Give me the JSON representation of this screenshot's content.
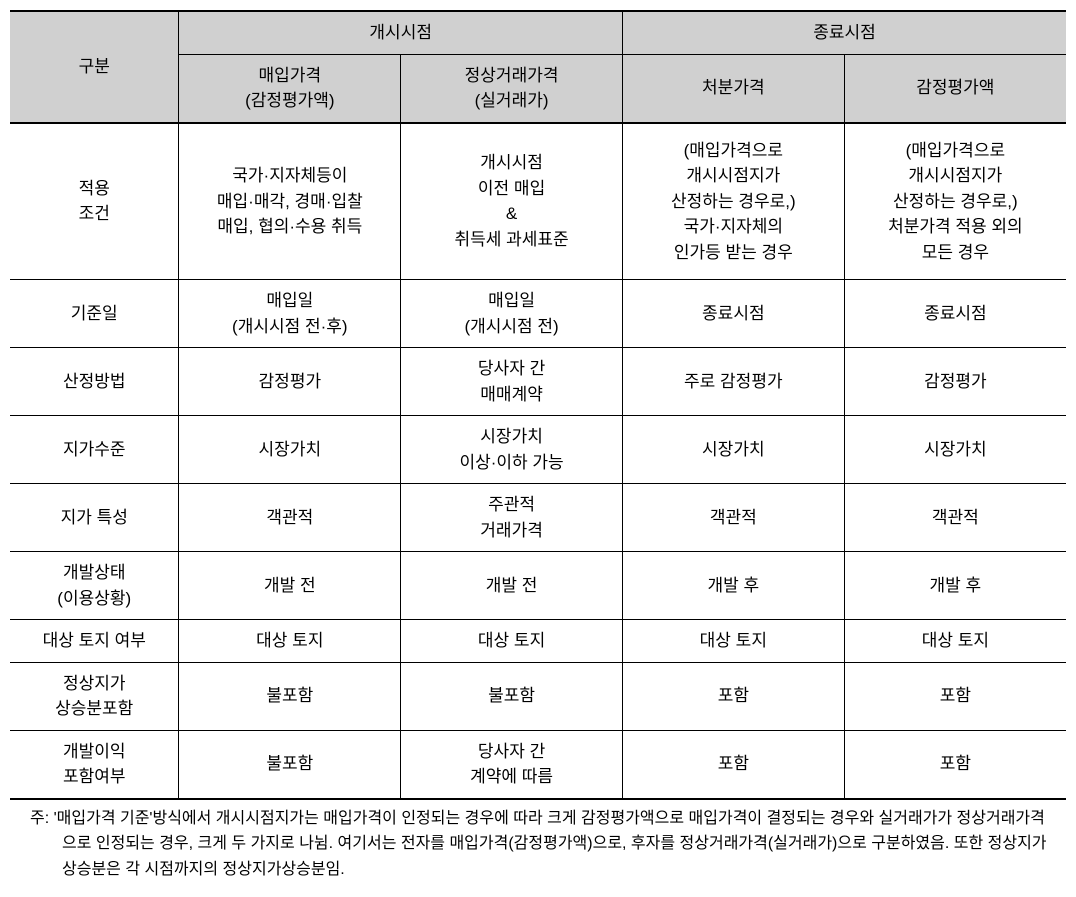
{
  "table": {
    "header": {
      "category_label": "구분",
      "group_start": "개시시점",
      "group_end": "종료시점",
      "col1": "매입가격\n(감정평가액)",
      "col2": "정상거래가격\n(실거래가)",
      "col3": "처분가격",
      "col4": "감정평가액"
    },
    "rows": [
      {
        "label": "적용\n조건",
        "c1": "국가·지자체등이\n매입·매각, 경매·입찰\n매입, 협의·수용 취득",
        "c2": "개시시점\n이전 매입\n&\n취득세 과세표준",
        "c3": "(매입가격으로\n개시시점지가\n산정하는 경우로,)\n국가·지자체의\n인가등 받는 경우",
        "c4": "(매입가격으로\n개시시점지가\n산정하는 경우로,)\n처분가격 적용 외의\n모든 경우",
        "tall": true
      },
      {
        "label": "기준일",
        "c1": "매입일\n(개시시점 전·후)",
        "c2": "매입일\n(개시시점 전)",
        "c3": "종료시점",
        "c4": "종료시점"
      },
      {
        "label": "산정방법",
        "c1": "감정평가",
        "c2": "당사자 간\n매매계약",
        "c3": "주로 감정평가",
        "c4": "감정평가"
      },
      {
        "label": "지가수준",
        "c1": "시장가치",
        "c2": "시장가치\n이상·이하 가능",
        "c3": "시장가치",
        "c4": "시장가치"
      },
      {
        "label": "지가 특성",
        "c1": "객관적",
        "c2": "주관적\n거래가격",
        "c3": "객관적",
        "c4": "객관적"
      },
      {
        "label": "개발상태\n(이용상황)",
        "c1": "개발 전",
        "c2": "개발 전",
        "c3": "개발 후",
        "c4": "개발 후"
      },
      {
        "label": "대상 토지 여부",
        "c1": "대상 토지",
        "c2": "대상 토지",
        "c3": "대상 토지",
        "c4": "대상 토지"
      },
      {
        "label": "정상지가\n상승분포함",
        "c1": "불포함",
        "c2": "불포함",
        "c3": "포함",
        "c4": "포함"
      },
      {
        "label": "개발이익\n포함여부",
        "c1": "불포함",
        "c2": "당사자 간\n계약에 따름",
        "c3": "포함",
        "c4": "포함"
      }
    ],
    "footnote": "주: '매입가격 기준'방식에서 개시시점지가는 매입가격이 인정되는 경우에 따라 크게 감정평가액으로 매입가격이 결정되는 경우와 실거래가가 정상거래가격으로 인정되는 경우, 크게 두 가지로 나뉨. 여기서는 전자를 매입가격(감정평가액)으로, 후자를 정상거래가격(실거래가)으로 구분하였음. 또한 정상지가상승분은 각 시점까지의 정상지가상승분임."
  },
  "colors": {
    "header_bg": "#d0d0d0",
    "border": "#000000",
    "text": "#000000",
    "background": "#ffffff"
  }
}
